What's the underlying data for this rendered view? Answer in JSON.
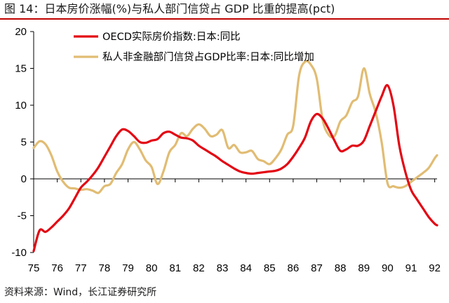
{
  "figure": {
    "title": "图 14：日本房价涨幅(%)与私人部门信贷占 GDP 比重的提高(pct)",
    "source": "资料来源：Wind，长江证券研究所"
  },
  "colors": {
    "house_price": "#e30613",
    "credit_gdp": "#e1bc73",
    "title_rule": "#c00000"
  },
  "chart_data": {
    "type": "line",
    "title": "",
    "xlabel": "",
    "ylabel": "",
    "xlim": [
      75,
      92.1
    ],
    "ylim": [
      -10,
      20
    ],
    "xticks": [
      75,
      76,
      77,
      78,
      79,
      80,
      81,
      82,
      83,
      84,
      85,
      86,
      87,
      88,
      89,
      90,
      91,
      92
    ],
    "xtick_labels": [
      "75",
      "76",
      "77",
      "78",
      "79",
      "80",
      "81",
      "82",
      "83",
      "84",
      "85",
      "86",
      "87",
      "88",
      "89",
      "90",
      "91",
      "92"
    ],
    "yticks": [
      -10,
      -5,
      0,
      5,
      10,
      15,
      20
    ],
    "ytick_labels": [
      "-10",
      "-5",
      "0",
      "5",
      "10",
      "15",
      "20"
    ],
    "grid": false,
    "legend_position": "top-center",
    "series": [
      {
        "name": "OECD实际房价指数:日本:同比",
        "color": "#e30613",
        "points": [
          [
            75.0,
            -9.8
          ],
          [
            75.25,
            -7.0
          ],
          [
            75.5,
            -7.2
          ],
          [
            75.75,
            -6.6
          ],
          [
            76.0,
            -5.8
          ],
          [
            76.25,
            -5.0
          ],
          [
            76.5,
            -4.0
          ],
          [
            76.75,
            -2.6
          ],
          [
            77.0,
            -1.2
          ],
          [
            77.25,
            -0.4
          ],
          [
            77.5,
            0.5
          ],
          [
            77.75,
            1.6
          ],
          [
            78.0,
            3.0
          ],
          [
            78.25,
            4.4
          ],
          [
            78.5,
            5.8
          ],
          [
            78.75,
            6.7
          ],
          [
            79.0,
            6.5
          ],
          [
            79.25,
            5.8
          ],
          [
            79.5,
            5.0
          ],
          [
            79.75,
            4.9
          ],
          [
            80.0,
            5.2
          ],
          [
            80.25,
            5.4
          ],
          [
            80.5,
            6.2
          ],
          [
            80.75,
            6.4
          ],
          [
            81.0,
            6.0
          ],
          [
            81.25,
            5.6
          ],
          [
            81.5,
            5.5
          ],
          [
            81.75,
            5.2
          ],
          [
            82.0,
            4.5
          ],
          [
            82.25,
            4.0
          ],
          [
            82.5,
            3.5
          ],
          [
            82.75,
            3.0
          ],
          [
            83.0,
            2.4
          ],
          [
            83.25,
            1.9
          ],
          [
            83.5,
            1.4
          ],
          [
            83.75,
            1.0
          ],
          [
            84.0,
            0.8
          ],
          [
            84.25,
            0.7
          ],
          [
            84.5,
            0.8
          ],
          [
            84.75,
            0.9
          ],
          [
            85.0,
            1.0
          ],
          [
            85.25,
            1.1
          ],
          [
            85.5,
            1.4
          ],
          [
            85.75,
            2.0
          ],
          [
            86.0,
            3.0
          ],
          [
            86.25,
            4.2
          ],
          [
            86.5,
            5.6
          ],
          [
            86.75,
            7.8
          ],
          [
            87.0,
            8.8
          ],
          [
            87.25,
            8.2
          ],
          [
            87.5,
            6.8
          ],
          [
            87.75,
            5.2
          ],
          [
            88.0,
            3.8
          ],
          [
            88.25,
            4.0
          ],
          [
            88.5,
            4.5
          ],
          [
            88.75,
            4.5
          ],
          [
            89.0,
            5.2
          ],
          [
            89.25,
            7.2
          ],
          [
            89.5,
            9.2
          ],
          [
            89.75,
            11.2
          ],
          [
            90.0,
            12.7
          ],
          [
            90.25,
            10.0
          ],
          [
            90.5,
            4.5
          ],
          [
            90.75,
            1.0
          ],
          [
            91.0,
            -1.5
          ],
          [
            91.25,
            -2.8
          ],
          [
            91.5,
            -4.0
          ],
          [
            91.75,
            -5.2
          ],
          [
            92.0,
            -6.1
          ],
          [
            92.1,
            -6.3
          ]
        ]
      },
      {
        "name": "私人非金融部门信贷占GDP比率:日本:同比增加",
        "color": "#e1bc73",
        "points": [
          [
            75.0,
            4.2
          ],
          [
            75.25,
            5.1
          ],
          [
            75.5,
            4.7
          ],
          [
            75.75,
            3.2
          ],
          [
            76.0,
            1.0
          ],
          [
            76.25,
            -0.4
          ],
          [
            76.5,
            -1.2
          ],
          [
            76.75,
            -1.3
          ],
          [
            77.0,
            -1.5
          ],
          [
            77.25,
            -1.4
          ],
          [
            77.5,
            -1.6
          ],
          [
            77.75,
            -1.9
          ],
          [
            78.0,
            -1.0
          ],
          [
            78.25,
            -0.7
          ],
          [
            78.5,
            0.8
          ],
          [
            78.75,
            2.0
          ],
          [
            79.0,
            4.0
          ],
          [
            79.25,
            5.0
          ],
          [
            79.5,
            4.0
          ],
          [
            79.75,
            2.5
          ],
          [
            80.0,
            1.6
          ],
          [
            80.25,
            -0.7
          ],
          [
            80.5,
            1.0
          ],
          [
            80.75,
            3.6
          ],
          [
            81.0,
            4.6
          ],
          [
            81.25,
            6.2
          ],
          [
            81.5,
            5.8
          ],
          [
            81.75,
            6.8
          ],
          [
            82.0,
            7.4
          ],
          [
            82.25,
            6.8
          ],
          [
            82.5,
            5.8
          ],
          [
            82.75,
            6.0
          ],
          [
            83.0,
            6.6
          ],
          [
            83.25,
            4.2
          ],
          [
            83.5,
            4.6
          ],
          [
            83.75,
            3.6
          ],
          [
            84.0,
            3.6
          ],
          [
            84.25,
            3.8
          ],
          [
            84.5,
            2.7
          ],
          [
            84.75,
            2.4
          ],
          [
            85.0,
            2.0
          ],
          [
            85.25,
            2.8
          ],
          [
            85.5,
            4.0
          ],
          [
            85.75,
            6.0
          ],
          [
            86.0,
            7.2
          ],
          [
            86.25,
            14.0
          ],
          [
            86.5,
            15.9
          ],
          [
            86.75,
            15.5
          ],
          [
            87.0,
            13.6
          ],
          [
            87.25,
            8.0
          ],
          [
            87.5,
            6.0
          ],
          [
            87.75,
            5.8
          ],
          [
            88.0,
            7.8
          ],
          [
            88.25,
            8.6
          ],
          [
            88.5,
            10.4
          ],
          [
            88.75,
            11.2
          ],
          [
            89.0,
            15.0
          ],
          [
            89.25,
            11.5
          ],
          [
            89.5,
            9.0
          ],
          [
            89.75,
            5.0
          ],
          [
            90.0,
            -0.6
          ],
          [
            90.25,
            -1.0
          ],
          [
            90.5,
            -1.2
          ],
          [
            90.75,
            -1.0
          ],
          [
            91.0,
            -0.4
          ],
          [
            91.25,
            0.2
          ],
          [
            91.5,
            0.8
          ],
          [
            91.75,
            1.5
          ],
          [
            92.0,
            2.8
          ],
          [
            92.1,
            3.2
          ]
        ]
      }
    ]
  }
}
